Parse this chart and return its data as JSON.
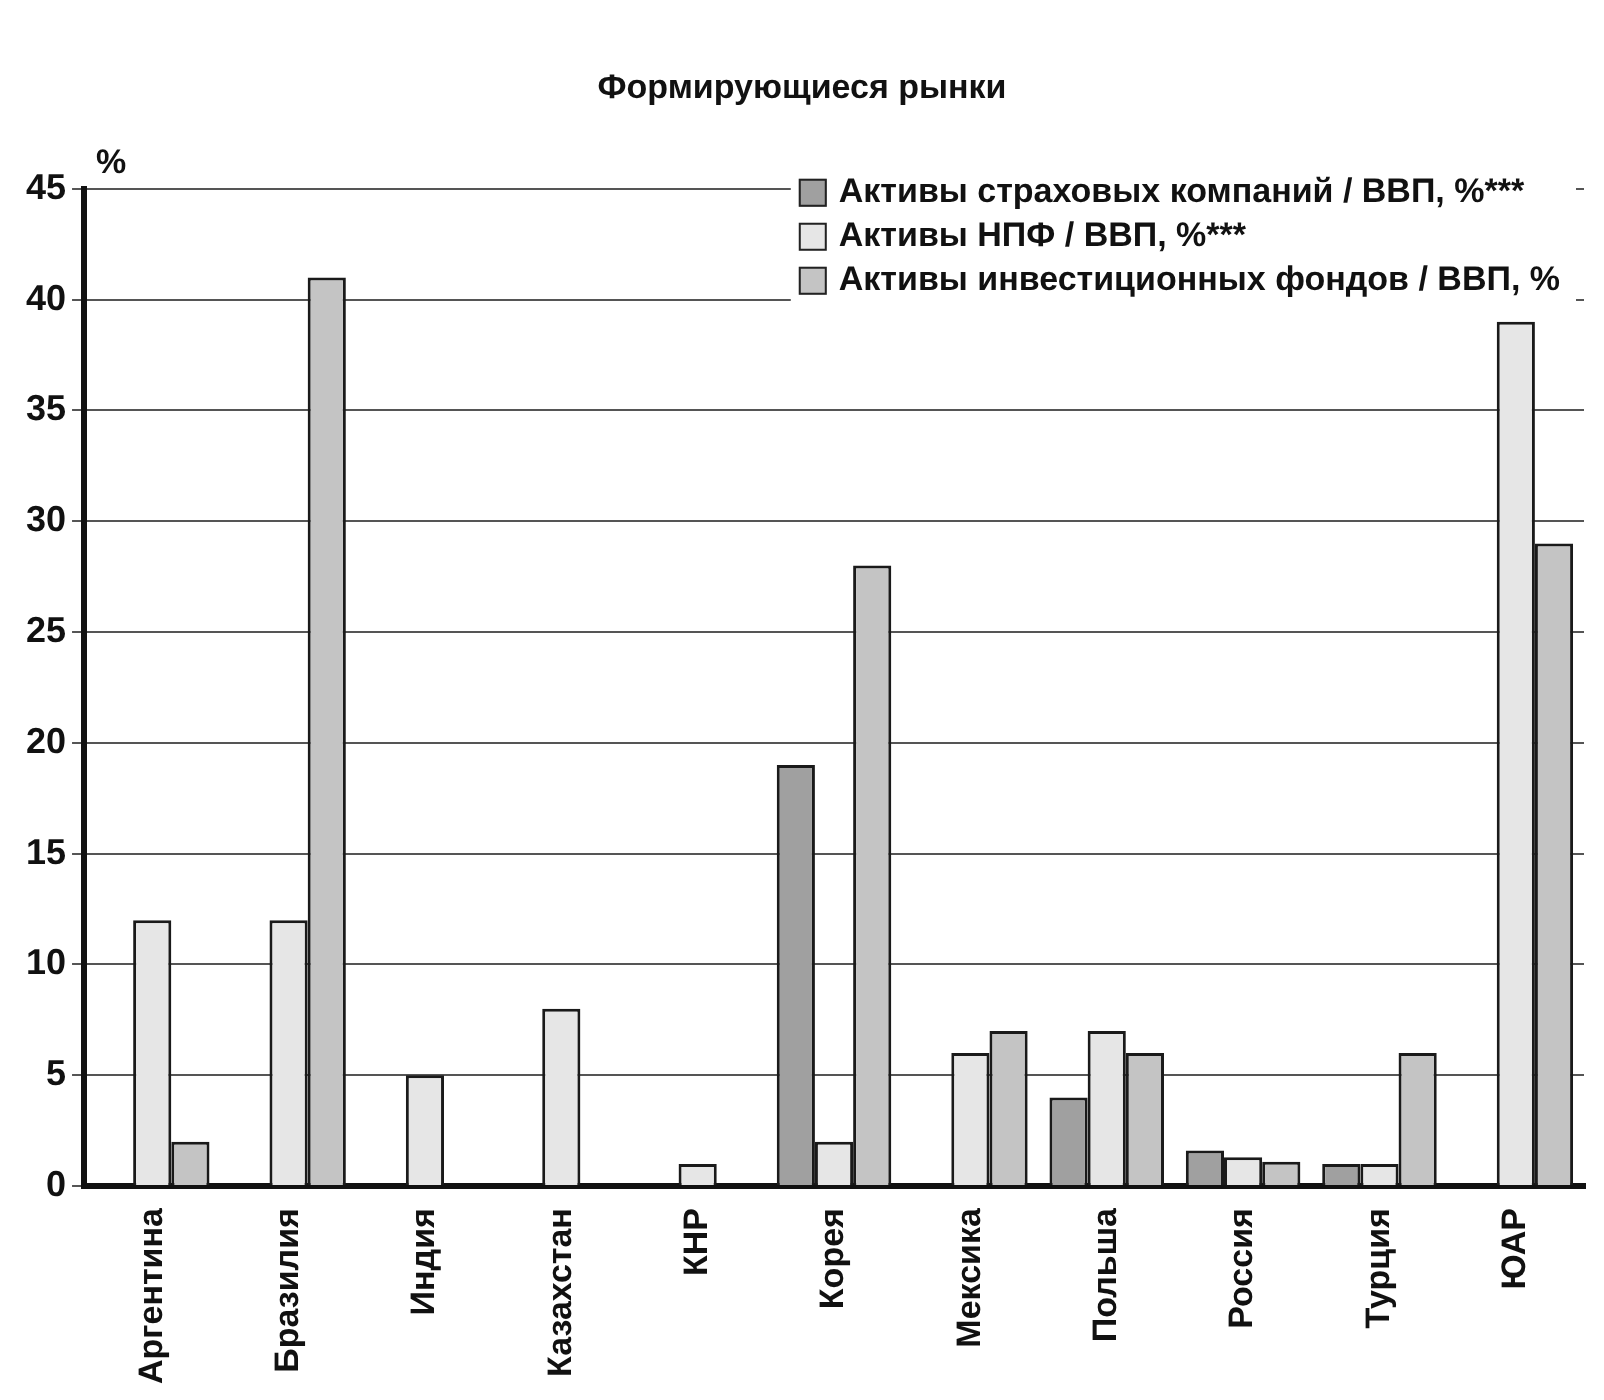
{
  "chart_data": {
    "type": "bar",
    "title": "Формирующиеся рынки",
    "ylabel": "%",
    "categories": [
      "Аргентина",
      "Бразилия",
      "Индия",
      "Казахстан",
      "КНР",
      "Корея",
      "Мексика",
      "Польша",
      "Россия",
      "Турция",
      "ЮАР"
    ],
    "series": [
      {
        "name": "Активы страховых компаний / ВВП, %***",
        "color": "#a0a0a0",
        "values": [
          null,
          null,
          null,
          null,
          null,
          19,
          null,
          4,
          1.6,
          1,
          null
        ]
      },
      {
        "name": "Активы НПФ / ВВП, %***",
        "color": "#e6e6e6",
        "values": [
          12,
          12,
          5,
          8,
          1,
          2,
          6,
          7,
          1.3,
          1,
          39
        ]
      },
      {
        "name": "Активы инвестиционных фондов / ВВП, %",
        "color": "#c4c4c4",
        "values": [
          2,
          41,
          null,
          null,
          null,
          28,
          7,
          6,
          1.1,
          6,
          29
        ]
      }
    ],
    "ylim": [
      0,
      45
    ],
    "yticks": [
      0,
      5,
      10,
      15,
      20,
      25,
      30,
      35,
      40,
      45
    ],
    "grid": "y",
    "legend": "top right"
  }
}
